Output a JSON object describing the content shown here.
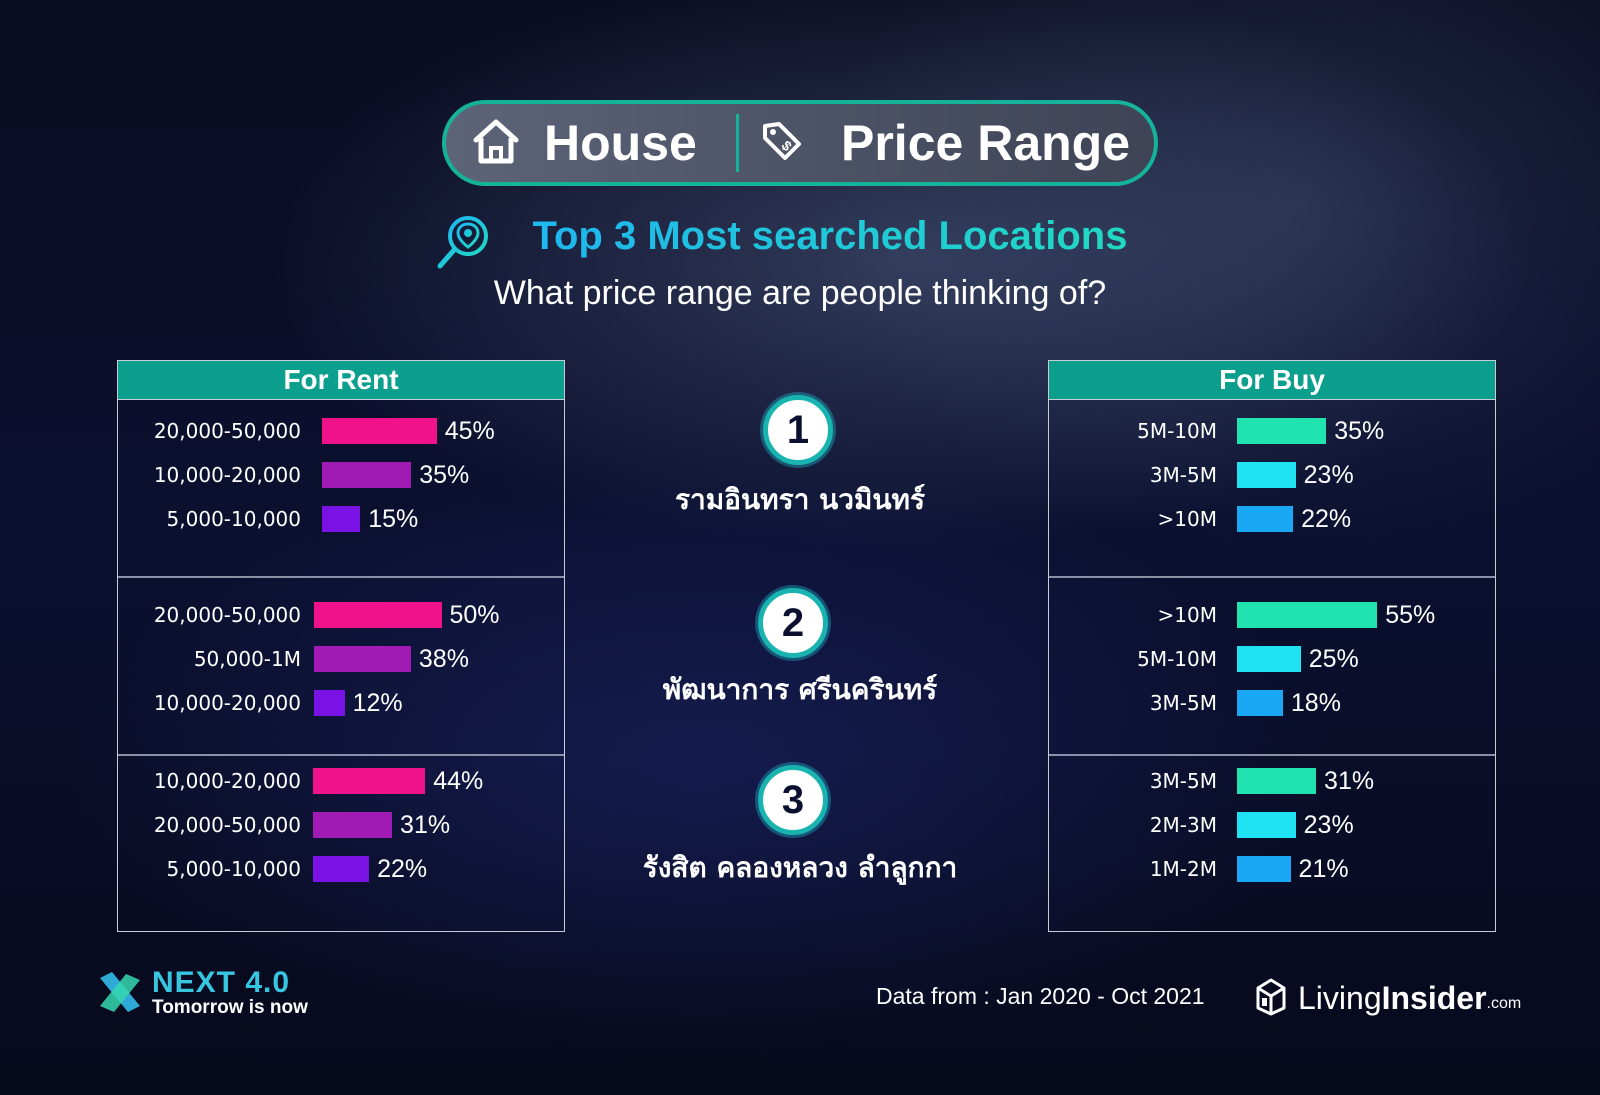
{
  "header": {
    "house_label": "House",
    "price_label": "Price Range",
    "subtitle": "Top 3 Most searched Locations",
    "question": "What price range are people thinking of?"
  },
  "colors": {
    "rent_bars": [
      "#f0128a",
      "#a21ab4",
      "#7a12e6"
    ],
    "buy_bars": [
      "#21e3b0",
      "#1fe3f2",
      "#1aa8f5"
    ],
    "accent": "#0d9f8d"
  },
  "chart_data": [
    {
      "type": "bar",
      "title": "For Rent",
      "groups": [
        {
          "rank": "1",
          "location": "รามอินทรา นวมินทร์",
          "categories": [
            "20,000-50,000",
            "10,000-20,000",
            "5,000-10,000"
          ],
          "values": [
            45,
            35,
            15
          ],
          "labels": [
            "45%",
            "35%",
            "15%"
          ]
        },
        {
          "rank": "2",
          "location": "พัฒนาการ ศรีนครินทร์",
          "categories": [
            "20,000-50,000",
            "50,000-1M",
            "10,000-20,000"
          ],
          "values": [
            50,
            38,
            12
          ],
          "labels": [
            "50%",
            "38%",
            "12%"
          ]
        },
        {
          "rank": "3",
          "location": "รังสิต คลองหลวง ลำลูกกา",
          "categories": [
            "10,000-20,000",
            "20,000-50,000",
            "5,000-10,000"
          ],
          "values": [
            44,
            31,
            22
          ],
          "labels": [
            "44%",
            "31%",
            "22%"
          ]
        }
      ]
    },
    {
      "type": "bar",
      "title": "For Buy",
      "groups": [
        {
          "rank": "1",
          "categories": [
            "5M-10M",
            "3M-5M",
            ">10M"
          ],
          "values": [
            35,
            23,
            22
          ],
          "labels": [
            "35%",
            "23%",
            "22%"
          ]
        },
        {
          "rank": "2",
          "categories": [
            ">10M",
            "5M-10M",
            "3M-5M"
          ],
          "values": [
            55,
            25,
            18
          ],
          "labels": [
            "55%",
            "25%",
            "18%"
          ]
        },
        {
          "rank": "3",
          "categories": [
            "3M-5M",
            "2M-3M",
            "1M-2M"
          ],
          "values": [
            31,
            23,
            21
          ],
          "labels": [
            "31%",
            "23%",
            "21%"
          ]
        }
      ]
    }
  ],
  "footer": {
    "next_title": "NEXT 4.0",
    "next_tagline": "Tomorrow is now",
    "source": "Data from : Jan 2020 - Oct 2021",
    "brand_living": "Living",
    "brand_insider": "Insider",
    "brand_com": ".com"
  }
}
